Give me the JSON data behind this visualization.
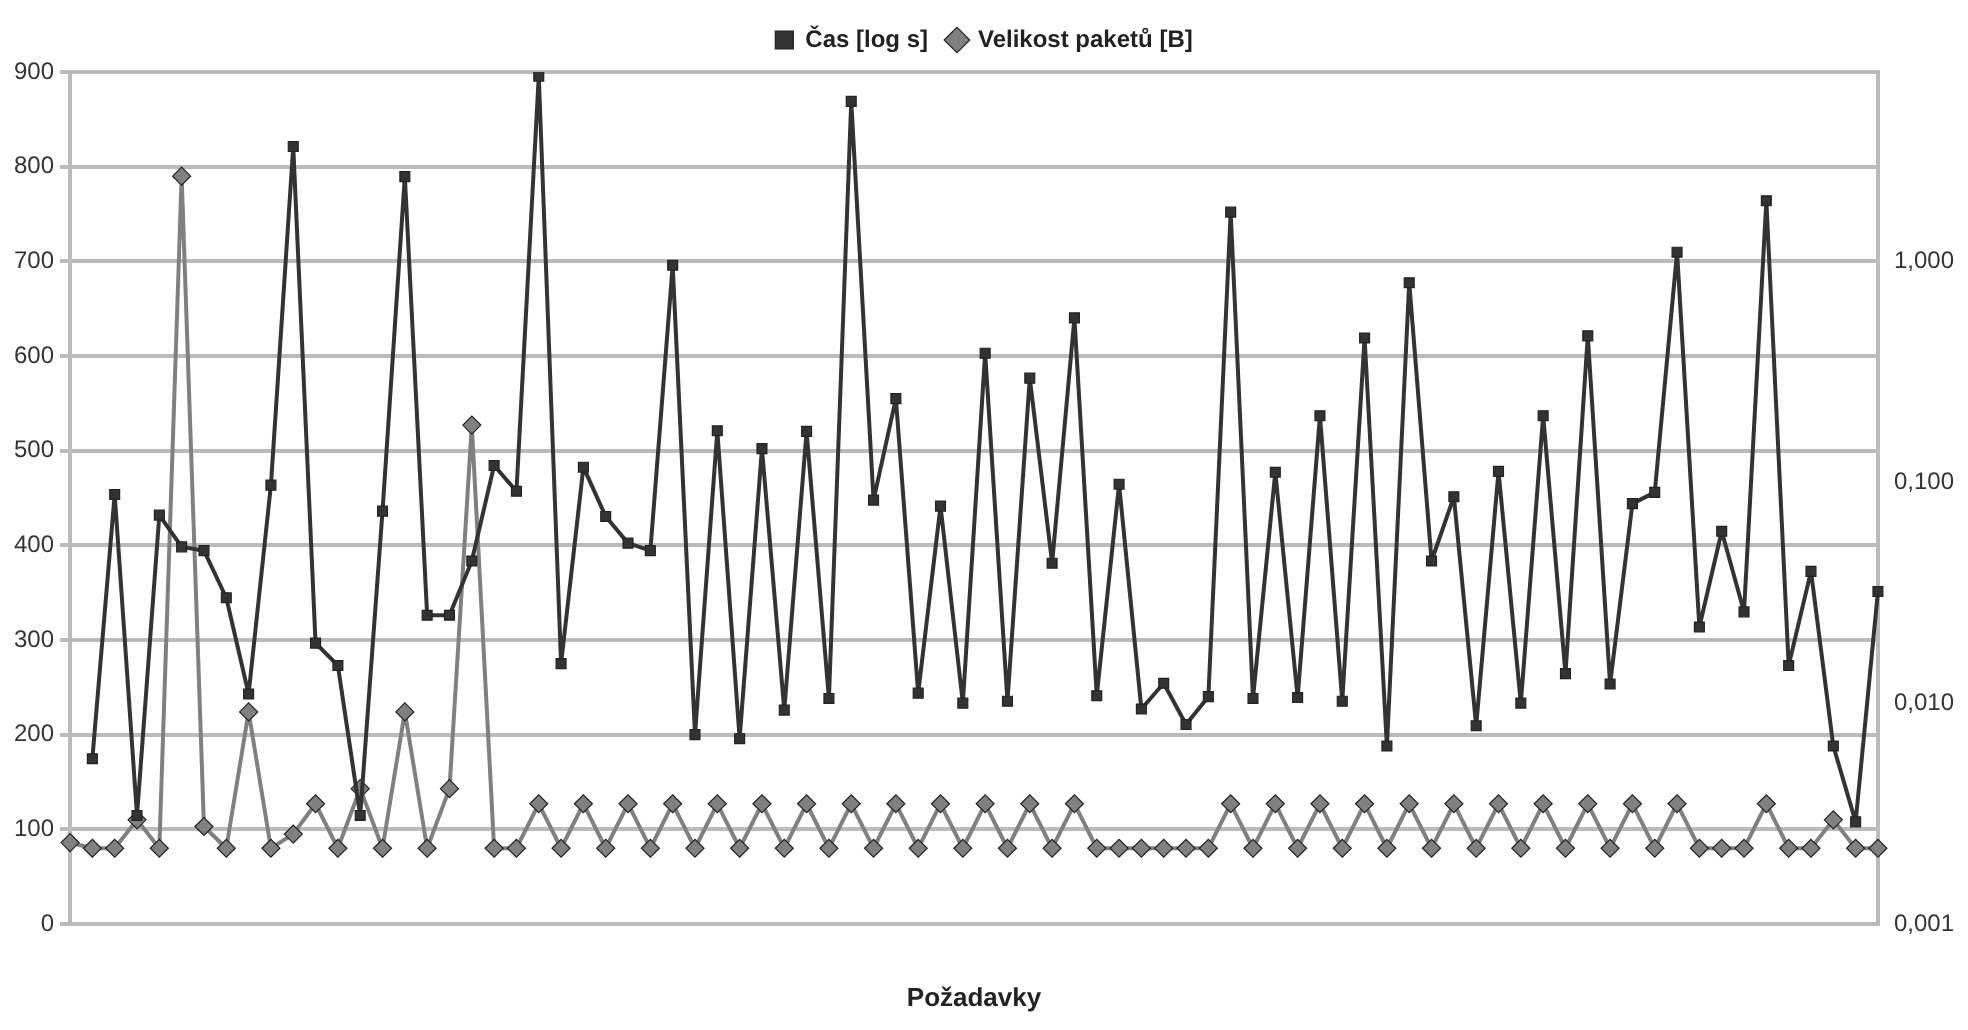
{
  "chart_data": {
    "type": "line",
    "xlabel": "Požadavky",
    "categories": [
      null,
      null,
      null,
      null,
      null,
      null,
      null,
      null,
      null,
      null,
      null,
      null,
      null,
      null,
      null,
      null,
      null,
      null,
      null,
      null,
      null,
      null,
      null,
      null,
      null,
      null,
      null,
      null,
      null,
      null,
      null,
      null,
      null,
      null,
      null,
      null,
      null,
      null,
      null,
      null,
      null,
      null,
      null,
      null,
      null,
      null,
      null,
      null,
      null,
      null,
      null,
      null,
      null,
      null,
      null,
      null,
      null,
      null,
      null,
      null,
      null,
      null,
      null,
      null,
      null,
      null,
      null,
      null,
      null,
      null,
      null,
      null,
      null,
      null,
      null,
      null,
      null,
      null,
      null,
      null,
      null,
      null
    ],
    "series": [
      {
        "name": "Čas [log s]",
        "color": "#333333",
        "marker": "square",
        "axis": "y2",
        "values": [
          null,
          0.0056,
          0.088,
          0.0031,
          0.071,
          0.051,
          0.049,
          0.03,
          0.011,
          0.097,
          3.31,
          0.0187,
          0.0148,
          0.0031,
          0.074,
          2.42,
          0.025,
          0.025,
          0.044,
          0.119,
          0.091,
          6.9,
          0.0151,
          0.117,
          0.07,
          0.053,
          0.049,
          0.96,
          0.0072,
          0.171,
          0.0069,
          0.142,
          0.0093,
          0.17,
          0.0105,
          5.3,
          0.083,
          0.239,
          0.0111,
          0.078,
          0.01,
          0.384,
          0.0102,
          0.296,
          0.043,
          0.555,
          0.0108,
          0.098,
          0.0094,
          0.0123,
          0.008,
          0.0107,
          1.67,
          0.0105,
          0.111,
          0.0106,
          0.2,
          0.0102,
          0.45,
          0.0064,
          0.8,
          0.044,
          0.086,
          0.0079,
          0.112,
          0.01,
          0.2,
          0.0136,
          0.46,
          0.0122,
          0.08,
          0.09,
          1.1,
          0.0221,
          0.06,
          0.0259,
          1.88,
          0.0148,
          0.0395,
          0.0064,
          0.0029,
          0.032
        ]
      },
      {
        "name": "Velikost paketů [B]",
        "color": "#808080",
        "marker": "diamond",
        "values": [
          86,
          80,
          80,
          110,
          80,
          790,
          103,
          80,
          224,
          80,
          95,
          127,
          80,
          143,
          80,
          224,
          80,
          143,
          527,
          80,
          80,
          127,
          80,
          127,
          80,
          127,
          80,
          127,
          80,
          127,
          80,
          127,
          80,
          127,
          80,
          127,
          80,
          127,
          80,
          127,
          80,
          127,
          80,
          127,
          80,
          127,
          80,
          80,
          80,
          80,
          80,
          80,
          127,
          80,
          127,
          80,
          127,
          80,
          127,
          80,
          127,
          80,
          127,
          80,
          127,
          80,
          127,
          80,
          127,
          80,
          127,
          80,
          127,
          80,
          80,
          80,
          127,
          80,
          80,
          110,
          80,
          80
        ]
      }
    ],
    "ylim": [
      0,
      900
    ],
    "yticks": [
      0,
      100,
      200,
      300,
      400,
      500,
      600,
      700,
      800,
      900
    ],
    "y2lim": [
      0.001,
      7.2
    ],
    "y2ticks": [
      {
        "value": 0.001,
        "label": "0,001"
      },
      {
        "value": 0.01,
        "label": "0,010"
      },
      {
        "value": 0.1,
        "label": "0,100"
      },
      {
        "value": 1,
        "label": "1,000"
      }
    ],
    "log": "y2",
    "grid": "y",
    "legend": "top"
  }
}
